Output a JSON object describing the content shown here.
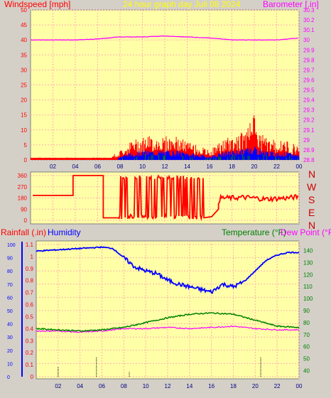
{
  "top_panel": {
    "title_left": "Windspeed [mph]",
    "title_center": "24 hour graph day   Juli 08 2024",
    "title_right": "Barometer [.in]"
  },
  "mid_panel": {
    "compass": [
      "N",
      "W",
      "S",
      "E",
      "N"
    ]
  },
  "bottom_panel": {
    "title_rain": "Rainfall (.in)",
    "title_humidity": "Humidity",
    "title_temp": "Temperature (°F)",
    "title_dew": "Dew Point (°F)"
  },
  "colors": {
    "background": "#d4d0c8",
    "plot_bg": "#ffffa8",
    "wind": "#ff0000",
    "gust_blue": "#0000ff",
    "gust_green": "#008000",
    "barometer": "#ff00ff",
    "direction": "#ff0000",
    "humidity": "#0000ff",
    "temperature": "#008000",
    "dewpoint": "#ff00ff",
    "rain_axis": "#0000ff"
  },
  "chart_data": [
    {
      "type": "line",
      "title": "24 hour graph day   Juli 08 2024",
      "ylabel": "Windspeed [mph]",
      "y2label": "Barometer [.in]",
      "x_ticks": [
        "02",
        "04",
        "06",
        "08",
        "10",
        "12",
        "14",
        "16",
        "18",
        "20",
        "22",
        "00"
      ],
      "ylim": [
        0,
        50
      ],
      "y_ticks": [
        0,
        5,
        10,
        15,
        20,
        25,
        30,
        35,
        40,
        45,
        50
      ],
      "y2lim": [
        28.8,
        30.3
      ],
      "y2_ticks": [
        "28.8",
        "28.9",
        "29",
        "29.1",
        "29.2",
        "29.3",
        "29.4",
        "29.5",
        "29.6",
        "29.7",
        "29.8",
        "29.9",
        "30",
        "30.1",
        "30.2",
        "30.3"
      ],
      "series": [
        {
          "name": "Barometer",
          "axis": "right",
          "x": [
            0,
            2,
            4,
            6,
            8,
            10,
            12,
            14,
            16,
            18,
            20,
            22,
            24
          ],
          "values": [
            30.0,
            30.0,
            30.0,
            30.01,
            30.03,
            30.03,
            30.04,
            30.03,
            30.02,
            30.0,
            30.0,
            30.0,
            30.02
          ]
        },
        {
          "name": "Windspeed",
          "axis": "left",
          "x": [
            0,
            1,
            2,
            3,
            4,
            5,
            6,
            7,
            8,
            9,
            10,
            11,
            12,
            13,
            14,
            15,
            16,
            17,
            18,
            19,
            20,
            21,
            22,
            23,
            24
          ],
          "values": [
            0.5,
            0.5,
            0.5,
            0.5,
            0.5,
            0.5,
            0.5,
            0.5,
            2,
            4,
            5,
            5,
            5,
            5,
            4,
            3,
            2,
            4,
            5,
            6,
            7,
            5,
            4,
            4,
            3
          ]
        }
      ]
    },
    {
      "type": "line",
      "ylabel": "Wind direction",
      "ylim": [
        0,
        360
      ],
      "y_ticks": [
        0,
        90,
        180,
        270,
        360
      ],
      "series": [
        {
          "name": "Wind direction",
          "x": [
            0,
            3.8,
            3.9,
            6.5,
            6.6,
            8,
            8.5,
            9,
            10,
            11,
            12,
            13,
            14,
            15,
            15.5,
            16,
            17,
            18,
            19,
            20,
            21,
            22,
            23,
            24
          ],
          "values": [
            200,
            200,
            360,
            360,
            20,
            20,
            180,
            20,
            300,
            20,
            300,
            20,
            300,
            20,
            20,
            40,
            180,
            180,
            185,
            180,
            170,
            175,
            180,
            190
          ]
        }
      ]
    },
    {
      "type": "line",
      "y_rain_lim": [
        0,
        1.1
      ],
      "y_rain_ticks": [
        "0",
        "0.1",
        "0.2",
        "0.3",
        "0.4",
        "0.5",
        "0.6",
        "0.7",
        "0.8",
        "0.9",
        "1",
        "1.1"
      ],
      "y_hum_lim": [
        0,
        100
      ],
      "y_hum_ticks": [
        0,
        10,
        20,
        30,
        40,
        50,
        60,
        70,
        80,
        90,
        100
      ],
      "y_temp_lim": [
        35,
        145
      ],
      "y_temp_ticks": [
        40,
        50,
        60,
        70,
        80,
        90,
        100,
        110,
        120,
        130,
        140
      ],
      "x_ticks": [
        "02",
        "04",
        "06",
        "08",
        "10",
        "12",
        "14",
        "16",
        "18",
        "20",
        "22",
        "00"
      ],
      "series": [
        {
          "name": "Humidity",
          "axis": "humidity",
          "x": [
            0,
            2,
            4,
            6,
            7,
            8,
            9,
            10,
            11,
            12,
            13,
            14,
            15,
            16,
            17,
            18,
            19,
            20,
            21,
            22,
            23,
            24
          ],
          "values": [
            95,
            96,
            97,
            98,
            97,
            90,
            83,
            80,
            78,
            73,
            70,
            68,
            66,
            64,
            70,
            68,
            72,
            80,
            88,
            92,
            94,
            94
          ]
        },
        {
          "name": "Temperature",
          "axis": "temp",
          "x": [
            0,
            2,
            4,
            6,
            8,
            10,
            12,
            14,
            16,
            18,
            20,
            22,
            24
          ],
          "values": [
            75,
            74,
            73,
            74,
            76,
            80,
            84,
            87,
            88,
            87,
            82,
            77,
            76
          ]
        },
        {
          "name": "Dew Point",
          "axis": "temp",
          "x": [
            0,
            2,
            4,
            6,
            8,
            10,
            12,
            14,
            16,
            18,
            20,
            22,
            24
          ],
          "values": [
            73,
            73,
            72,
            73,
            75,
            75,
            76,
            75,
            76,
            77,
            75,
            74,
            74
          ]
        },
        {
          "name": "Rainfall",
          "axis": "rain",
          "x": [
            2,
            5.5,
            8.5,
            20.5
          ],
          "values": [
            0.02,
            0.04,
            0.01,
            0.04
          ]
        }
      ]
    }
  ]
}
